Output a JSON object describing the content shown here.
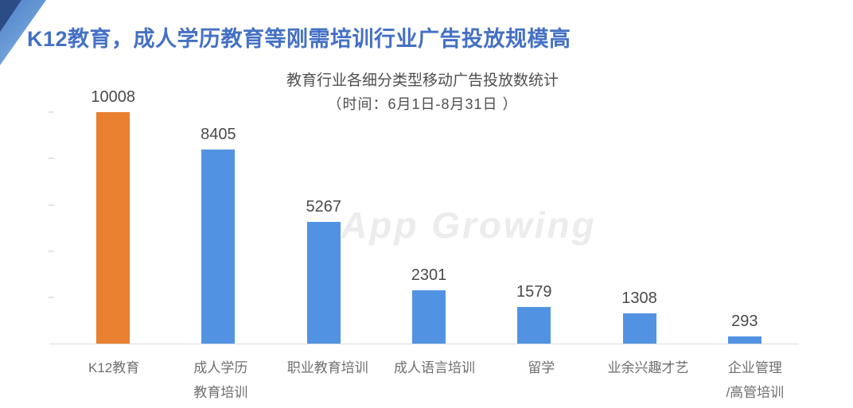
{
  "page_title": "K12教育，成人学历教育等刚需培训行业广告投放规模高",
  "watermark": "App Growing",
  "colors": {
    "title_blue": "#4470c4",
    "bar_orange": "#e8802f",
    "bar_blue": "#5193e2",
    "axis_line_gray": "#dcdcdc",
    "value_label_gray": "#4a4a4a",
    "axis_label_gray": "#6e6e6e",
    "ribbon_dark_blue": "#2c4c85",
    "ribbon_light_blue": "#6f9fd9",
    "watermark_gray": "#ececec"
  },
  "chart_data": {
    "type": "bar",
    "title": "教育行业各细分类型移动广告投放数统计",
    "subtitle": "（时间：6月1日-8月31日 ）",
    "categories": [
      "K12教育",
      "成人学历教育培训",
      "职业教育培训",
      "成人语言培训",
      "留学",
      "业余兴趣才艺",
      "企业管理/高管培训"
    ],
    "categories_display": [
      [
        "K12教育"
      ],
      [
        "成人学历",
        "教育培训"
      ],
      [
        "职业教育培训"
      ],
      [
        "成人语言培训"
      ],
      [
        "留学"
      ],
      [
        "业余兴趣才艺"
      ],
      [
        "企业管理",
        "/高管培训"
      ]
    ],
    "values": [
      10008,
      8405,
      5267,
      2301,
      1579,
      1308,
      293
    ],
    "bar_colors": [
      "#e8802f",
      "#5193e2",
      "#5193e2",
      "#5193e2",
      "#5193e2",
      "#5193e2",
      "#5193e2"
    ],
    "data_labels_shown": true,
    "ylim": [
      0,
      10300
    ],
    "y_ticks_unlabeled": [
      2000,
      4000,
      6000,
      8000,
      10000
    ],
    "grid": false,
    "legend": "none",
    "xlabel": "",
    "ylabel": ""
  }
}
